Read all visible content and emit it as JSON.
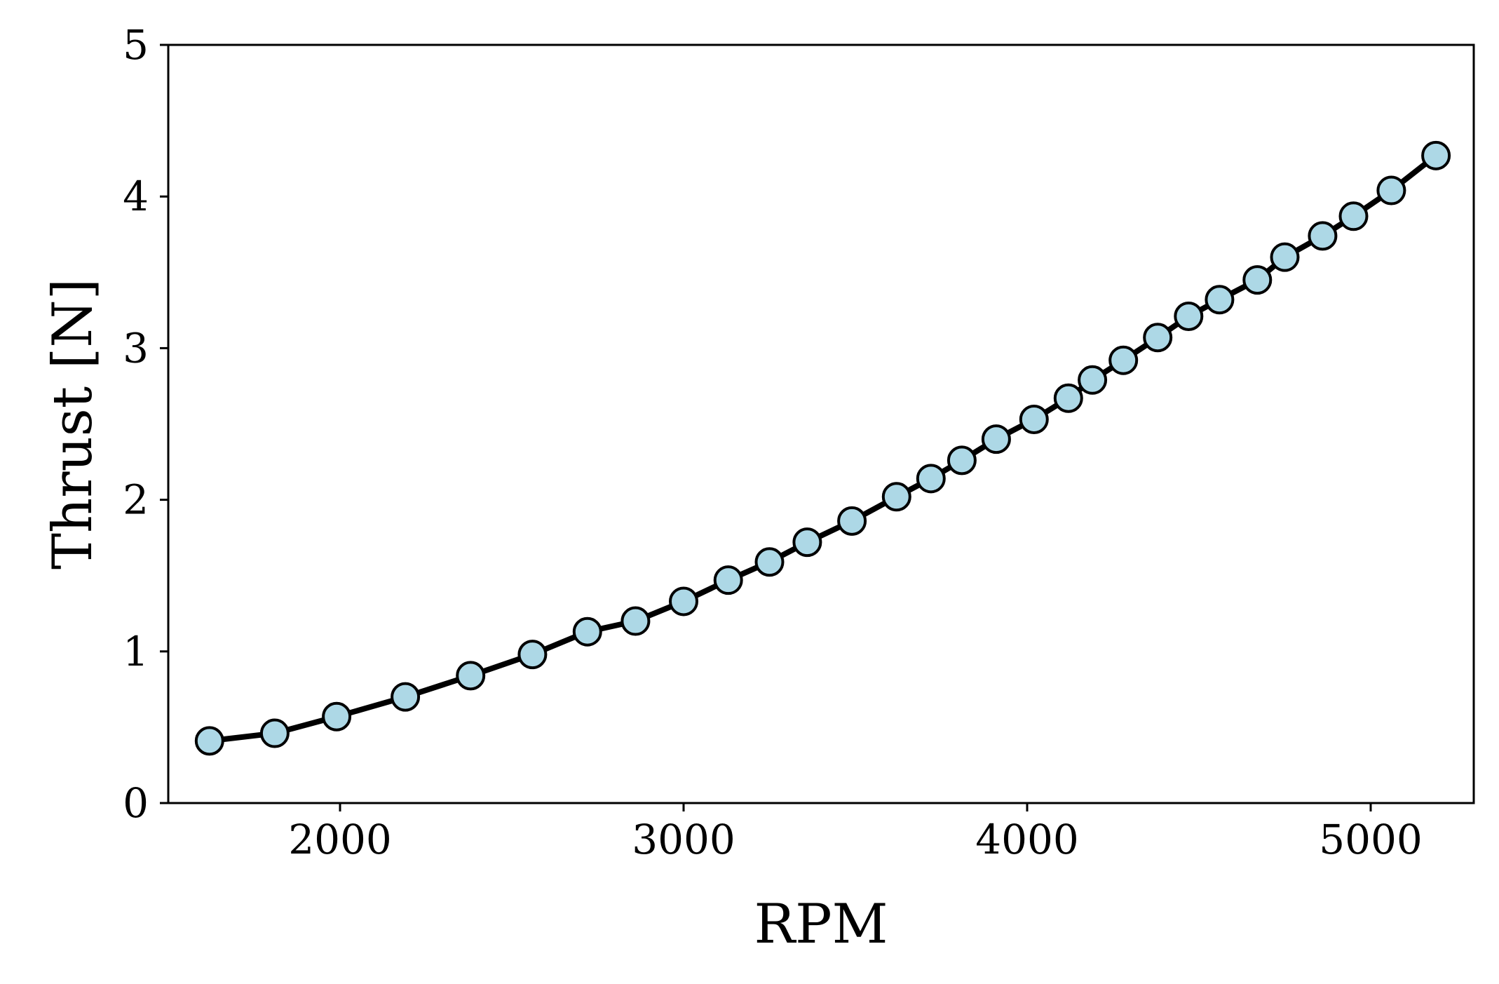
{
  "chart_data": {
    "type": "line",
    "title": "",
    "xlabel": "RPM",
    "ylabel": "Thrust [N]",
    "xlim": [
      1500,
      5300
    ],
    "ylim": [
      0,
      5
    ],
    "xticks": [
      2000,
      3000,
      4000,
      5000
    ],
    "yticks": [
      0,
      1,
      2,
      3,
      4,
      5
    ],
    "grid": false,
    "line_color": "#000000",
    "marker_fill": "#add8e6",
    "marker_edge": "#000000",
    "series": [
      {
        "x": [
          1620,
          1810,
          1990,
          2190,
          2380,
          2560,
          2720,
          2860,
          3000,
          3130,
          3250,
          3360,
          3490,
          3620,
          3720,
          3810,
          3910,
          4020,
          4120,
          4190,
          4280,
          4380,
          4470,
          4560,
          4670,
          4750,
          4860,
          4950,
          5060,
          5190
        ],
        "y": [
          0.41,
          0.46,
          0.57,
          0.7,
          0.84,
          0.98,
          1.13,
          1.2,
          1.33,
          1.47,
          1.59,
          1.72,
          1.86,
          2.02,
          2.14,
          2.26,
          2.4,
          2.53,
          2.67,
          2.79,
          2.92,
          3.07,
          3.21,
          3.32,
          3.45,
          3.6,
          3.74,
          3.87,
          4.04,
          4.27
        ]
      }
    ]
  }
}
